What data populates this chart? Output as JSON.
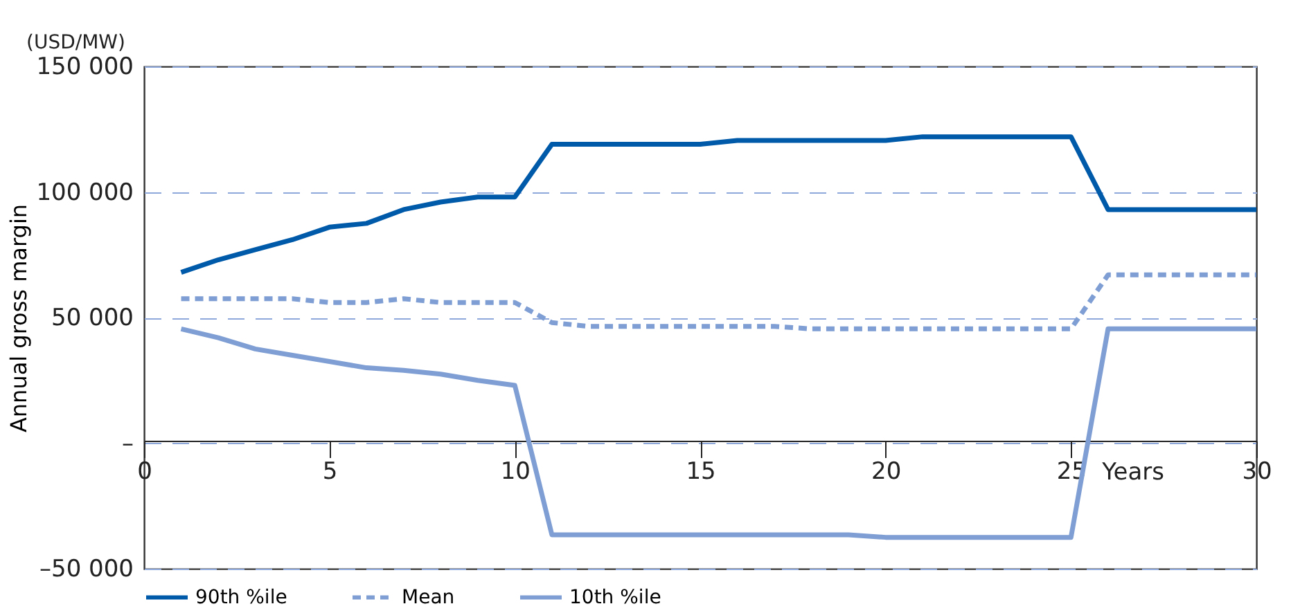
{
  "chart_data": {
    "type": "line",
    "xlabel": "Years",
    "ylabel": "Annual gross margin",
    "annotations": [
      "(USD/MW)"
    ],
    "x": [
      1,
      2,
      3,
      4,
      5,
      6,
      7,
      8,
      9,
      10,
      11,
      12,
      13,
      14,
      15,
      16,
      17,
      18,
      19,
      20,
      21,
      22,
      23,
      24,
      25,
      26,
      27,
      28,
      29,
      30
    ],
    "series": [
      {
        "name": "90th %ile",
        "color": "#005aaa",
        "line_style": "solid",
        "values": [
          68000,
          73000,
          77000,
          81000,
          86000,
          87500,
          93000,
          96000,
          98000,
          98000,
          119000,
          119000,
          119000,
          119000,
          119000,
          120500,
          120500,
          120500,
          120500,
          120500,
          122000,
          122000,
          122000,
          122000,
          122000,
          93000,
          93000,
          93000,
          93000,
          93000
        ]
      },
      {
        "name": "Mean",
        "color": "#7f9fd4",
        "line_style": "dashed",
        "values": [
          57500,
          57500,
          57500,
          57500,
          56000,
          56000,
          57500,
          56000,
          56000,
          56000,
          48000,
          46500,
          46500,
          46500,
          46500,
          46500,
          46500,
          45500,
          45500,
          45500,
          45500,
          45500,
          45500,
          45500,
          45500,
          67000,
          67000,
          67000,
          67000,
          67000
        ]
      },
      {
        "name": "10th %ile",
        "color": "#7f9fd4",
        "line_style": "solid",
        "values": [
          45500,
          42000,
          37500,
          35000,
          32500,
          30000,
          29000,
          27500,
          25000,
          23000,
          -36500,
          -36500,
          -36500,
          -36500,
          -36500,
          -36500,
          -36500,
          -36500,
          -36500,
          -37500,
          -37500,
          -37500,
          -37500,
          -37500,
          -37500,
          45500,
          45500,
          45500,
          45500,
          45500
        ]
      }
    ],
    "xlim": [
      0,
      30
    ],
    "xticks": [
      0,
      5,
      10,
      15,
      20,
      25,
      30
    ],
    "ylim": [
      -50000,
      150000
    ],
    "yticks": [
      {
        "value": -50000,
        "label": "–50 000"
      },
      {
        "value": 0,
        "label": "–"
      },
      {
        "value": 50000,
        "label": "50 000"
      },
      {
        "value": 100000,
        "label": "100 000"
      },
      {
        "value": 150000,
        "label": "150 000"
      }
    ],
    "grid": "y",
    "legend": "bottom"
  }
}
